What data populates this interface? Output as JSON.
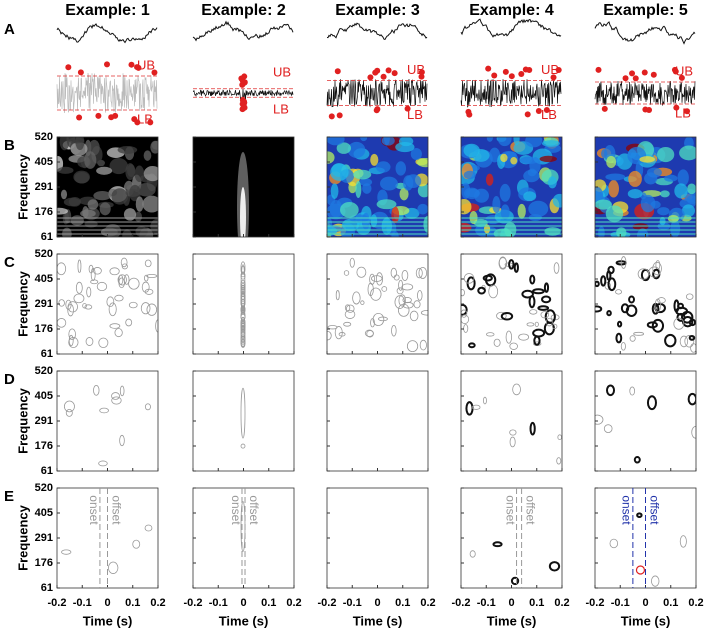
{
  "columns": [
    "Example: 1",
    "Example: 2",
    "Example: 3",
    "Example: 4",
    "Example: 5"
  ],
  "panel_labels": [
    "A",
    "B",
    "C",
    "D",
    "E"
  ],
  "y_axis_label": "Frequency",
  "y_ticks": [
    "520",
    "405",
    "291",
    "176",
    "61"
  ],
  "x_ticks": [
    "-0.2",
    "-0.1",
    "0",
    "0.1",
    "0.2"
  ],
  "x_axis_label": "Time (s)",
  "bound_labels": {
    "upper": "UB",
    "lower": "LB"
  },
  "event_labels": {
    "onset": "onset",
    "offset": "offset"
  }
}
